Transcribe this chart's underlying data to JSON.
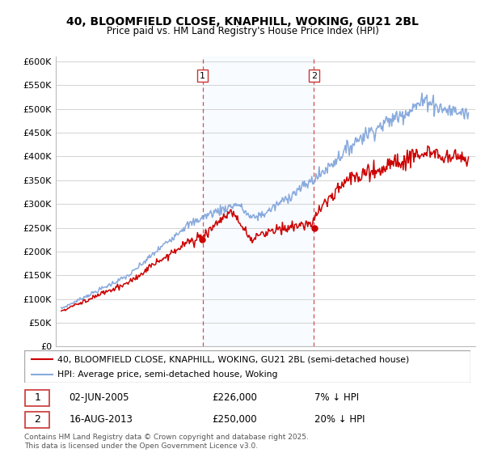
{
  "title": "40, BLOOMFIELD CLOSE, KNAPHILL, WOKING, GU21 2BL",
  "subtitle": "Price paid vs. HM Land Registry's House Price Index (HPI)",
  "ylabel_ticks": [
    "£0",
    "£50K",
    "£100K",
    "£150K",
    "£200K",
    "£250K",
    "£300K",
    "£350K",
    "£400K",
    "£450K",
    "£500K",
    "£550K",
    "£600K"
  ],
  "ytick_values": [
    0,
    50000,
    100000,
    150000,
    200000,
    250000,
    300000,
    350000,
    400000,
    450000,
    500000,
    550000,
    600000
  ],
  "sale1_year": 2005.42,
  "sale1_price": 226000,
  "sale2_year": 2013.62,
  "sale2_price": 250000,
  "legend_line1": "40, BLOOMFIELD CLOSE, KNAPHILL, WOKING, GU21 2BL (semi-detached house)",
  "legend_line2": "HPI: Average price, semi-detached house, Woking",
  "note1_label": "1",
  "note1_date": "02-JUN-2005",
  "note1_price": "£226,000",
  "note1_pct": "7% ↓ HPI",
  "note2_label": "2",
  "note2_date": "16-AUG-2013",
  "note2_price": "£250,000",
  "note2_pct": "20% ↓ HPI",
  "copyright_text": "Contains HM Land Registry data © Crown copyright and database right 2025.\nThis data is licensed under the Open Government Licence v3.0.",
  "line_color_property": "#cc0000",
  "line_color_hpi": "#88aadd",
  "vline_color": "#cc3333",
  "shade_color": "#ddeeff",
  "background_color": "#ffffff",
  "grid_color": "#cccccc"
}
